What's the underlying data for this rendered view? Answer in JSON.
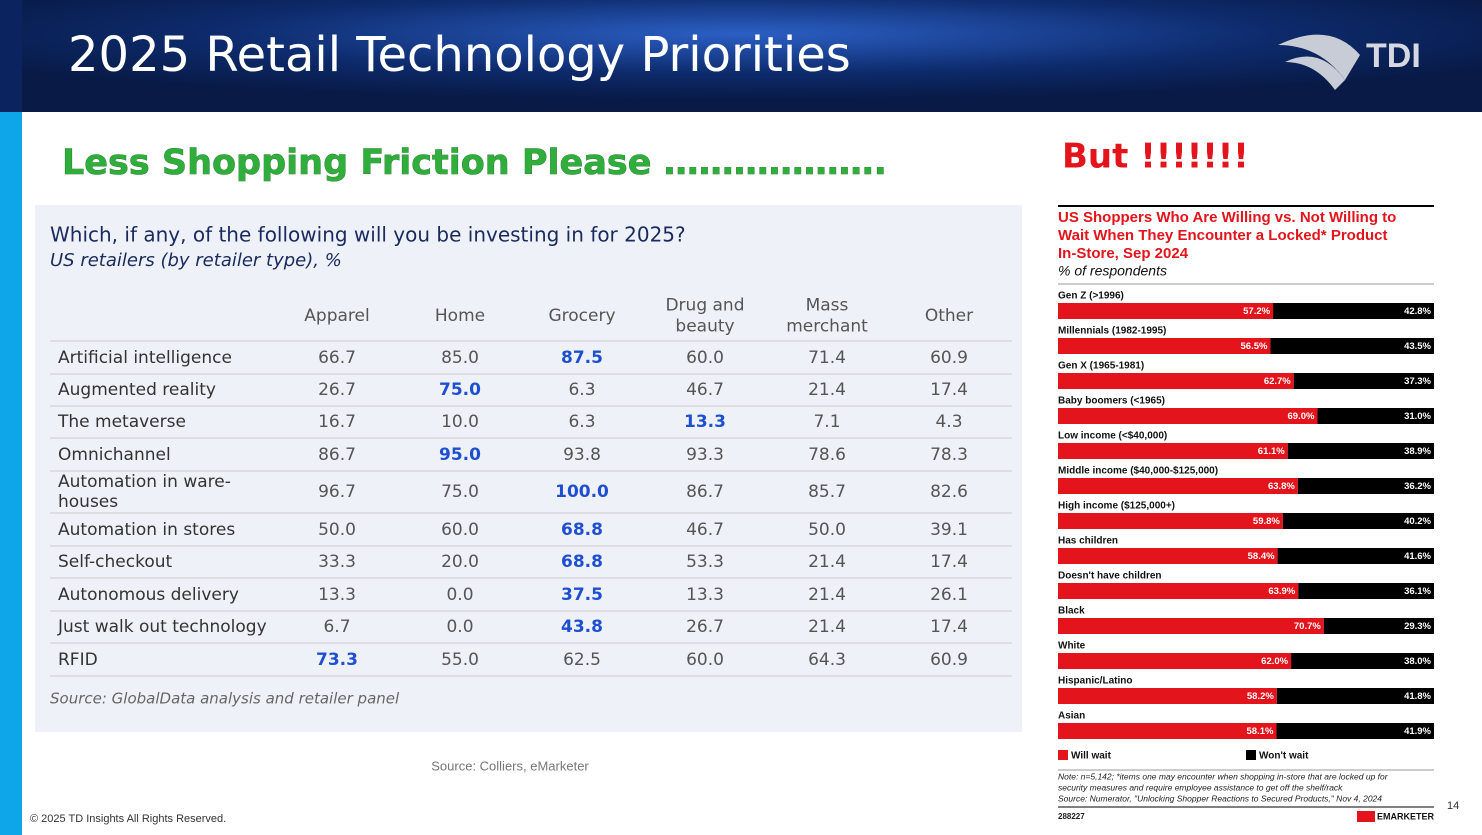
{
  "header": {
    "title": "2025 Retail Technology Priorities",
    "logo": "TDI"
  },
  "heading_left": "Less Shopping Friction Please ……………….",
  "heading_right": "But !!!!!!!",
  "table": {
    "title": "Which, if any, of the following will you be investing in for 2025?",
    "subtitle": "US retailers (by retailer type), %",
    "columns": [
      [
        "Apparel"
      ],
      [
        "Home"
      ],
      [
        "Grocery"
      ],
      [
        "Drug and",
        "beauty"
      ],
      [
        "Mass",
        "merchant"
      ],
      [
        "Other"
      ]
    ],
    "highlight_color": "#1f4fd1",
    "rows": [
      {
        "label": [
          "Artificial intelligence"
        ],
        "values": [
          "66.7",
          "85.0",
          "87.5",
          "60.0",
          "71.4",
          "60.9"
        ],
        "highlight": 2
      },
      {
        "label": [
          "Augmented reality"
        ],
        "values": [
          "26.7",
          "75.0",
          "6.3",
          "46.7",
          "21.4",
          "17.4"
        ],
        "highlight": 1
      },
      {
        "label": [
          "The metaverse"
        ],
        "values": [
          "16.7",
          "10.0",
          "6.3",
          "13.3",
          "7.1",
          "4.3"
        ],
        "highlight": 3
      },
      {
        "label": [
          "Omnichannel"
        ],
        "values": [
          "86.7",
          "95.0",
          "93.8",
          "93.3",
          "78.6",
          "78.3"
        ],
        "highlight": 1
      },
      {
        "label": [
          "Automation in ware-",
          "houses"
        ],
        "values": [
          "96.7",
          "75.0",
          "100.0",
          "86.7",
          "85.7",
          "82.6"
        ],
        "highlight": 2
      },
      {
        "label": [
          "Automation in stores"
        ],
        "values": [
          "50.0",
          "60.0",
          "68.8",
          "46.7",
          "50.0",
          "39.1"
        ],
        "highlight": 2
      },
      {
        "label": [
          "Self-checkout"
        ],
        "values": [
          "33.3",
          "20.0",
          "68.8",
          "53.3",
          "21.4",
          "17.4"
        ],
        "highlight": 2
      },
      {
        "label": [
          "Autonomous delivery"
        ],
        "values": [
          "13.3",
          "0.0",
          "37.5",
          "13.3",
          "21.4",
          "26.1"
        ],
        "highlight": 2
      },
      {
        "label": [
          "Just walk out technology"
        ],
        "values": [
          "6.7",
          "0.0",
          "43.8",
          "26.7",
          "21.4",
          "17.4"
        ],
        "highlight": 2
      },
      {
        "label": [
          "RFID"
        ],
        "values": [
          "73.3",
          "55.0",
          "62.5",
          "60.0",
          "64.3",
          "60.9"
        ],
        "highlight": 0
      }
    ],
    "source": "Source: GlobalData analysis and retailer panel"
  },
  "source": "Source: Colliers, eMarketer",
  "footer": "© 2025 TD Insights All Rights Reserved.",
  "page_number": "14",
  "chart_data": {
    "type": "stacked-bar-horizontal",
    "title": [
      "US Shoppers Who Are Willing vs. Not Willing to",
      "Wait When They Encounter a Locked* Product",
      "In-Store, Sep 2024"
    ],
    "subtitle": "% of respondents",
    "xlim": [
      0,
      100
    ],
    "categories": [
      "Gen Z (>1996)",
      "Millennials (1982-1995)",
      "Gen X (1965-1981)",
      "Baby boomers (<1965)",
      "Low income (<$40,000)",
      "Middle income ($40,000-$125,000)",
      "High income ($125,000+)",
      "Has children",
      "Doesn't have children",
      "Black",
      "White",
      "Hispanic/Latino",
      "Asian"
    ],
    "series": [
      {
        "name": "Will wait",
        "color": "#e3141b",
        "values": [
          57.2,
          56.5,
          62.7,
          69.0,
          61.1,
          63.8,
          59.8,
          58.4,
          63.9,
          70.7,
          62.0,
          58.2,
          58.1
        ],
        "value_labels": [
          "57.2%",
          "56.5%",
          "62.7%",
          "69.0%",
          "61.1%",
          "63.8%",
          "59.8%",
          "58.4%",
          "63.9%",
          "70.7%",
          "62.0%",
          "58.2%",
          "58.1%"
        ]
      },
      {
        "name": "Won't wait",
        "color": "#000000",
        "values": [
          42.8,
          43.5,
          37.3,
          31.0,
          38.9,
          36.2,
          40.2,
          41.6,
          36.1,
          29.3,
          38.0,
          41.8,
          41.9
        ],
        "value_labels": [
          "42.8%",
          "43.5%",
          "37.3%",
          "31.0%",
          "38.9%",
          "36.2%",
          "40.2%",
          "41.6%",
          "36.1%",
          "29.3%",
          "38.0%",
          "41.8%",
          "41.9%"
        ]
      }
    ],
    "notes": [
      "Note: n=5,142; *items one may encounter when shopping in-store that are locked up for",
      "security measures and require employee assistance to get off the shelf/rack",
      "Source: Numerator, \"Unlocking Shopper Reactions to Secured Products,\" Nov 4, 2024"
    ],
    "chart_id": "288227",
    "brand": "EMARKETER"
  }
}
